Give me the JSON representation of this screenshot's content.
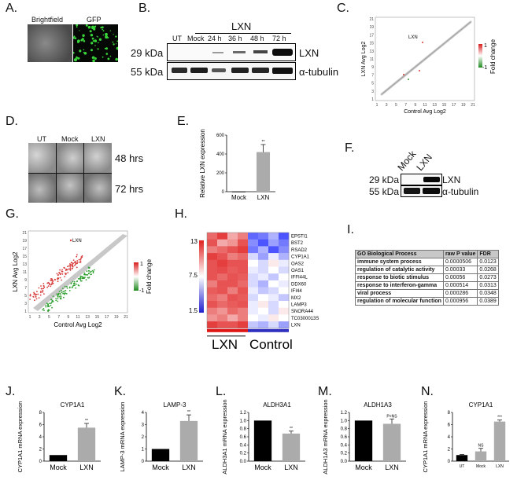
{
  "panel_labels": [
    "A.",
    "B.",
    "C.",
    "D.",
    "E.",
    "F.",
    "G.",
    "H.",
    "I.",
    "J.",
    "K.",
    "L.",
    "M.",
    "N."
  ],
  "panel_a": {
    "brightfield": "Brightfield",
    "gfp": "GFP"
  },
  "panel_b": {
    "group": "LXN",
    "lanes": [
      "UT",
      "Mock",
      "24 h",
      "36 h",
      "48 h",
      "72 h"
    ],
    "kda": [
      "29 kDa",
      "55 kDa"
    ],
    "proteins": [
      "LXN",
      "α-tubulin"
    ]
  },
  "panel_c": {
    "xlabel": "Control Avg Log2",
    "ylabel": "LXN Avg Log2",
    "annotation": "LXN",
    "ticks": [
      "1",
      "3",
      "5",
      "7",
      "9",
      "11",
      "13",
      "15",
      "17",
      "19",
      "21"
    ],
    "legend_title": "Fold change",
    "legend_max": "1",
    "legend_min": "-1"
  },
  "panel_d": {
    "cols": [
      "UT",
      "Mock",
      "LXN"
    ],
    "rows": [
      "48 hrs",
      "72 hrs"
    ]
  },
  "panel_f": {
    "lanes": [
      "Mock",
      "LXN"
    ],
    "kda": [
      "29 kDa",
      "55 kDa"
    ],
    "proteins": [
      "LXN",
      "α-tubulin"
    ]
  },
  "panel_g": {
    "xlabel": "Control Avg Log2",
    "ylabel": "LXN Avg Log2",
    "annotation": "LXN",
    "ticks": [
      "1",
      "3",
      "5",
      "7",
      "9",
      "11",
      "13",
      "15",
      "17",
      "19",
      "21"
    ],
    "legend_title": "Fold change",
    "legend_max": "1",
    "legend_min": "-1"
  },
  "panel_h": {
    "genes": [
      "EPSTI1",
      "BST2",
      "RSAD2",
      "CYP1A1",
      "OAS2",
      "OAS1",
      "IFFI44L",
      "DDX60",
      "IFI44",
      "MX2",
      "LAMP3",
      "SNORA44",
      "TC0300013S",
      "LXN"
    ],
    "scale": [
      "13",
      "7.5",
      "1.5"
    ],
    "groups": [
      "LXN",
      "Control"
    ]
  },
  "panel_i": {
    "headers": [
      "GO  Biological Process",
      "raw P value",
      "FDR"
    ],
    "rows": [
      [
        "immune system process",
        "0.0000506",
        "0.0123"
      ],
      [
        "regulation of catalytic activity",
        "0.00033",
        "0.0268"
      ],
      [
        "response to biotic stimulus",
        "0.00056",
        "0.0273"
      ],
      [
        "response to interferon-gamma",
        "0.000514",
        "0.0313"
      ],
      [
        "viral process",
        "0.000286",
        "0.0348"
      ],
      [
        "regulation of molecular function",
        "0.000956",
        "0.0389"
      ]
    ]
  },
  "chart_data": [
    {
      "id": "E",
      "type": "bar",
      "title": "",
      "ylabel": "Relative LXN expression",
      "categories": [
        "Mock",
        "LXN"
      ],
      "values": [
        1,
        420
      ],
      "errors": [
        0,
        80
      ],
      "ylim": [
        0,
        600
      ],
      "yticks": [
        "0",
        "200",
        "400",
        "600"
      ],
      "sig": [
        "",
        "**"
      ]
    },
    {
      "id": "J",
      "type": "bar",
      "title": "CYP1A1",
      "ylabel": "CYP1A1 mRNA expression",
      "categories": [
        "Mock",
        "LXN"
      ],
      "values": [
        1,
        5.5
      ],
      "errors": [
        0,
        0.7
      ],
      "ylim": [
        0,
        8
      ],
      "yticks": [
        "0",
        "2",
        "4",
        "6",
        "8"
      ],
      "sig": [
        "",
        "**"
      ]
    },
    {
      "id": "K",
      "type": "bar",
      "title": "LAMP-3",
      "ylabel": "LAMP-3 mRNA expression",
      "categories": [
        "Mock",
        "LXN"
      ],
      "values": [
        1,
        3.3
      ],
      "errors": [
        0,
        0.5
      ],
      "ylim": [
        0,
        4
      ],
      "yticks": [
        "0",
        "1",
        "2",
        "3",
        "4"
      ],
      "sig": [
        "",
        "**"
      ]
    },
    {
      "id": "L",
      "type": "bar",
      "title": "ALDH3A1",
      "ylabel": "ALDH3A1 mRNA expression",
      "categories": [
        "Mock",
        "LXN"
      ],
      "values": [
        1,
        0.68
      ],
      "errors": [
        0,
        0.06
      ],
      "ylim": [
        0,
        1.2
      ],
      "yticks": [
        "0.0",
        "0.2",
        "0.4",
        "0.6",
        "0.8",
        "1.0",
        "1.2"
      ],
      "sig": [
        "",
        "**"
      ]
    },
    {
      "id": "M",
      "type": "bar",
      "title": "ALDH1A3",
      "ylabel": "ALDH1A3 mRNA expression",
      "categories": [
        "Mock",
        "LXN"
      ],
      "values": [
        1,
        0.92
      ],
      "errors": [
        0,
        0.12
      ],
      "ylim": [
        0,
        1.2
      ],
      "yticks": [
        "0.0",
        "0.2",
        "0.4",
        "0.6",
        "0.8",
        "1.0",
        "1.2"
      ],
      "sig": [
        "",
        "P=NS"
      ]
    },
    {
      "id": "N",
      "type": "bar",
      "title": "CYP1A1",
      "ylabel": "CYP1A1 mRNA expression",
      "categories": [
        "UT",
        "Mock",
        "LXN"
      ],
      "values": [
        1,
        1.6,
        6.5
      ],
      "errors": [
        0.1,
        0.5,
        0.25
      ],
      "ylim": [
        0,
        8
      ],
      "yticks": [
        "0",
        "2",
        "4",
        "6",
        "8"
      ],
      "sig": [
        "",
        "NS",
        "***"
      ]
    }
  ],
  "colors": {
    "gray_bar": "#ababab",
    "black_bar": "#000000",
    "red": "#d83a3a",
    "green": "#3a9a3a",
    "scatter": "#bdbdbd"
  }
}
